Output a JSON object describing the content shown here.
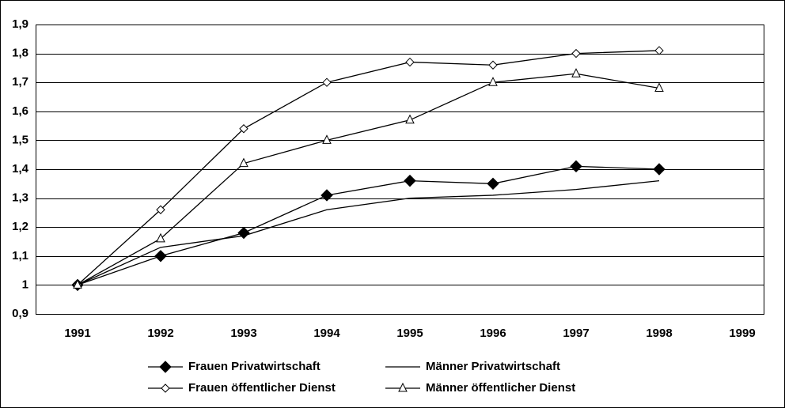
{
  "chart_data": {
    "type": "line",
    "categories": [
      "1991",
      "1992",
      "1993",
      "1994",
      "1995",
      "1996",
      "1997",
      "1998",
      "1999"
    ],
    "series": [
      {
        "name": "Frauen Privatwirtschaft",
        "color": "#000000",
        "marker": "diamond-filled",
        "values": [
          1.0,
          1.1,
          1.18,
          1.31,
          1.36,
          1.35,
          1.41,
          1.4,
          null
        ]
      },
      {
        "name": "Männer Privatwirtschaft",
        "color": "#000000",
        "marker": "none",
        "values": [
          1.0,
          1.13,
          1.17,
          1.26,
          1.3,
          1.31,
          1.33,
          1.36,
          null
        ]
      },
      {
        "name": "Frauen öffentlicher Dienst",
        "color": "#000000",
        "marker": "diamond-open",
        "values": [
          1.0,
          1.26,
          1.54,
          1.7,
          1.77,
          1.76,
          1.8,
          1.81,
          null
        ]
      },
      {
        "name": "Männer öffentlicher Dienst",
        "color": "#000000",
        "marker": "triangle-open",
        "values": [
          1.0,
          1.16,
          1.42,
          1.5,
          1.57,
          1.7,
          1.73,
          1.68,
          null
        ]
      }
    ],
    "ylim": [
      0.9,
      1.9
    ],
    "yticks": [
      {
        "value": 0.9,
        "label": "0,9"
      },
      1,
      {
        "value": 1.1,
        "label": "1,1"
      },
      {
        "value": 1.2,
        "label": "1,2"
      },
      {
        "value": 1.3,
        "label": "1,3"
      },
      {
        "value": 1.4,
        "label": "1,4"
      },
      {
        "value": 1.5,
        "label": "1,5"
      },
      {
        "value": 1.6,
        "label": "1,6"
      },
      {
        "value": 1.7,
        "label": "1,7"
      },
      {
        "value": 1.8,
        "label": "1,8"
      },
      {
        "value": 1.9,
        "label": "1,9"
      }
    ],
    "grid": true,
    "legend": "bottom"
  }
}
